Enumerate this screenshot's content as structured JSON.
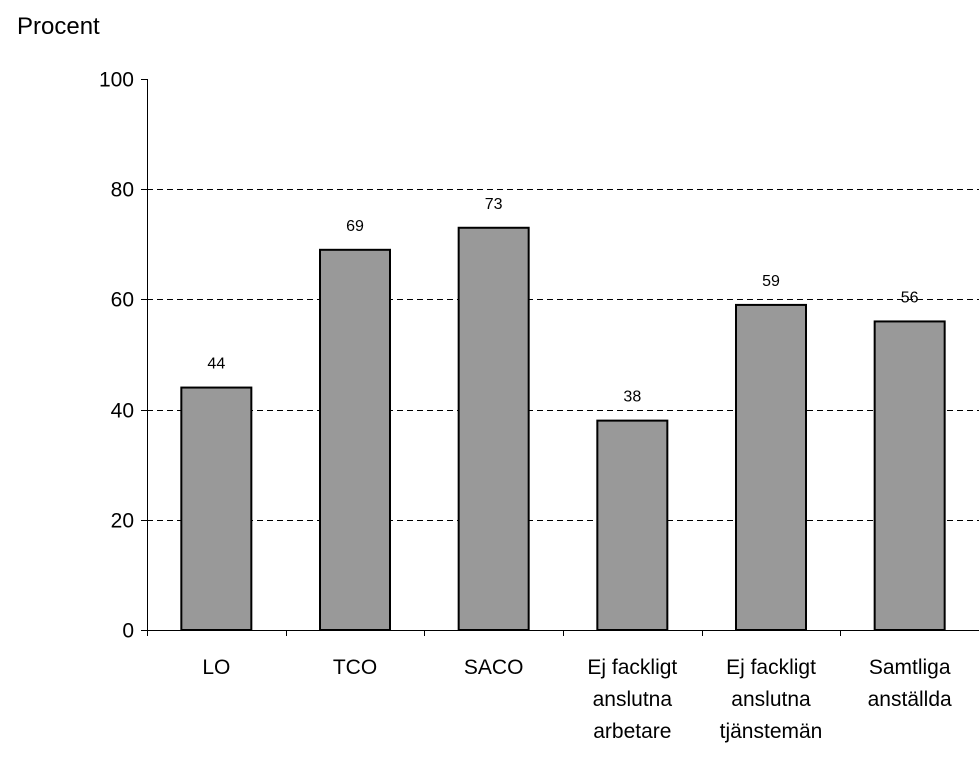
{
  "chart_data": {
    "type": "bar",
    "title": "",
    "xlabel": "",
    "ylabel": "Procent",
    "ylim": [
      0,
      100
    ],
    "yticks": [
      0,
      20,
      40,
      60,
      80,
      100
    ],
    "grid": "dashed horizontal",
    "legend": "none",
    "bar_color": "#999999",
    "categories": [
      [
        "LO"
      ],
      [
        "TCO"
      ],
      [
        "SACO"
      ],
      [
        "Ej fackligt",
        "anslutna",
        "arbetare"
      ],
      [
        "Ej fackligt",
        "anslutna",
        "tjänstemän"
      ],
      [
        "Samtliga",
        "anställda"
      ]
    ],
    "values": [
      44,
      69,
      73,
      38,
      59,
      56
    ]
  }
}
